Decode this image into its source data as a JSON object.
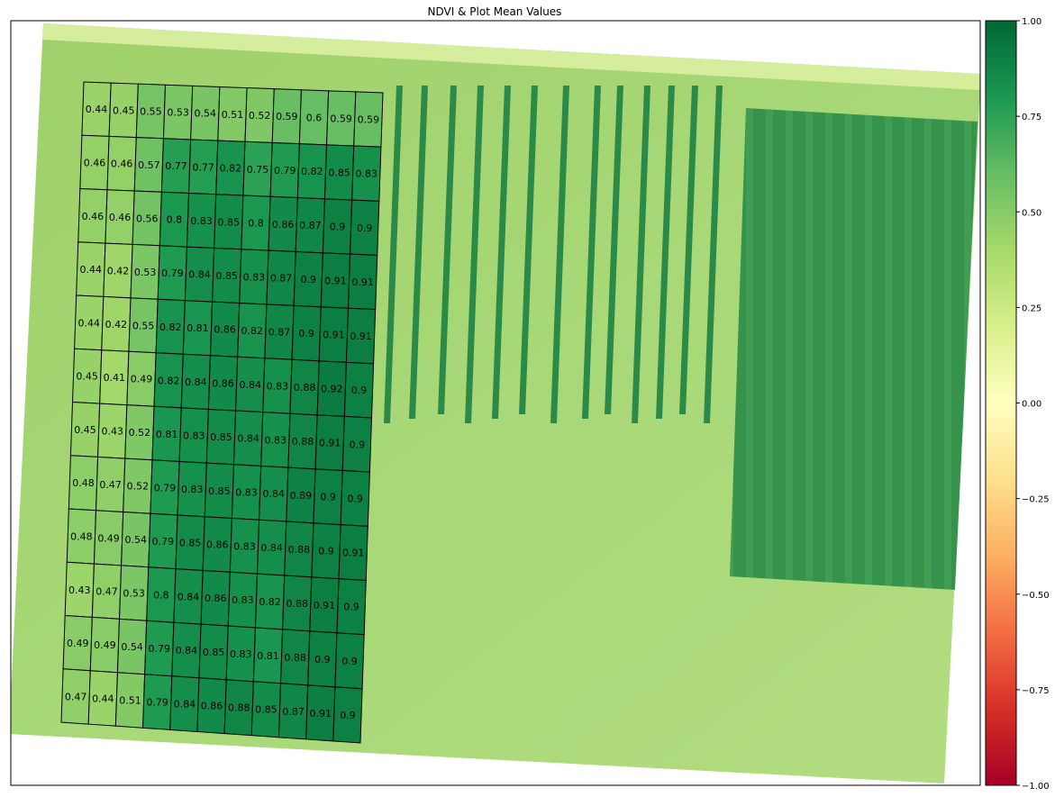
{
  "chart_data": {
    "type": "heatmap",
    "title": "NDVI & Plot Mean Values",
    "rows": 12,
    "cols": 11,
    "values": [
      [
        "0.44",
        "0.45",
        "0.55",
        "0.53",
        "0.54",
        "0.51",
        "0.52",
        "0.59",
        "0.6",
        "0.59",
        "0.59"
      ],
      [
        "0.46",
        "0.46",
        "0.57",
        "0.77",
        "0.77",
        "0.82",
        "0.75",
        "0.79",
        "0.82",
        "0.85",
        "0.83"
      ],
      [
        "0.46",
        "0.46",
        "0.56",
        "0.8",
        "0.83",
        "0.85",
        "0.8",
        "0.86",
        "0.87",
        "0.9",
        "0.9"
      ],
      [
        "0.44",
        "0.42",
        "0.53",
        "0.79",
        "0.84",
        "0.85",
        "0.83",
        "0.87",
        "0.9",
        "0.91",
        "0.91"
      ],
      [
        "0.44",
        "0.42",
        "0.55",
        "0.82",
        "0.81",
        "0.86",
        "0.82",
        "0.87",
        "0.9",
        "0.91",
        "0.91"
      ],
      [
        "0.45",
        "0.41",
        "0.49",
        "0.82",
        "0.84",
        "0.86",
        "0.84",
        "0.83",
        "0.88",
        "0.92",
        "0.9"
      ],
      [
        "0.45",
        "0.43",
        "0.52",
        "0.81",
        "0.83",
        "0.85",
        "0.84",
        "0.83",
        "0.88",
        "0.91",
        "0.9"
      ],
      [
        "0.48",
        "0.47",
        "0.52",
        "0.79",
        "0.83",
        "0.85",
        "0.83",
        "0.84",
        "0.89",
        "0.9",
        "0.9"
      ],
      [
        "0.48",
        "0.49",
        "0.54",
        "0.79",
        "0.85",
        "0.86",
        "0.83",
        "0.84",
        "0.88",
        "0.9",
        "0.91"
      ],
      [
        "0.43",
        "0.47",
        "0.53",
        "0.8",
        "0.84",
        "0.86",
        "0.83",
        "0.82",
        "0.88",
        "0.91",
        "0.9"
      ],
      [
        "0.49",
        "0.49",
        "0.54",
        "0.79",
        "0.84",
        "0.85",
        "0.83",
        "0.81",
        "0.88",
        "0.9",
        "0.9"
      ],
      [
        "0.47",
        "0.44",
        "0.51",
        "0.79",
        "0.84",
        "0.86",
        "0.88",
        "0.85",
        "0.87",
        "0.91",
        "0.9"
      ]
    ],
    "colorbar": {
      "colormap": "RdYlGn",
      "range": [
        -1.0,
        1.0
      ],
      "ticks": [
        1.0,
        0.75,
        0.5,
        0.25,
        0.0,
        -0.25,
        -0.5,
        -0.75,
        -1.0
      ],
      "tick_labels": [
        "1.00",
        "0.75",
        "0.50",
        "0.25",
        "0.00",
        "−0.25",
        "−0.50",
        "−0.75",
        "−1.00"
      ]
    },
    "grid": false,
    "legend": "none"
  },
  "colors": {
    "low_red": "#a50026",
    "mid_yellow": "#ffffbf",
    "high_green": "#006837",
    "field_base": "#a6d96a",
    "cell_border": "#000000"
  }
}
